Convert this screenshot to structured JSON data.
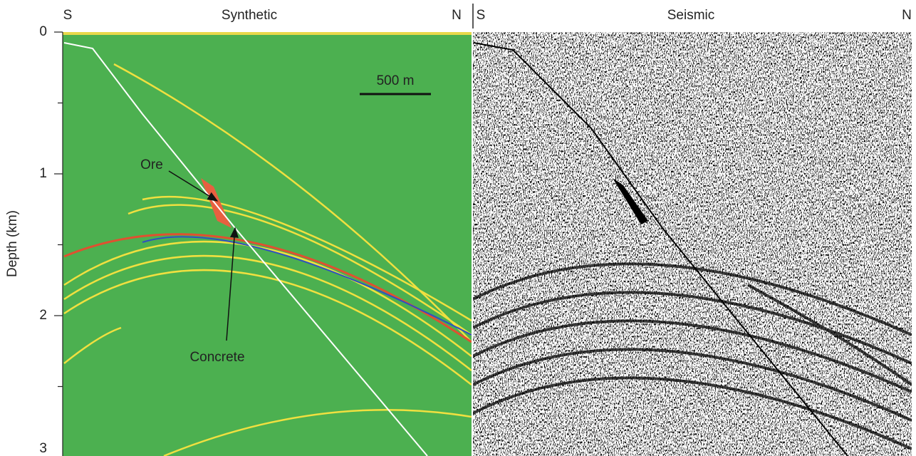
{
  "panels": [
    {
      "left": "S",
      "title": "Synthetic",
      "right": "N"
    },
    {
      "left": "S",
      "title": "Seismic",
      "right": "N"
    }
  ],
  "y_axis": {
    "label": "Depth (km)",
    "ylim": [
      0,
      3
    ],
    "ticks": [
      0,
      1,
      2,
      3
    ],
    "minor_ticks": [
      0.5,
      1.5,
      2.5
    ]
  },
  "scale_bar": "500 m",
  "annotations": [
    "Ore",
    "Concrete"
  ]
}
